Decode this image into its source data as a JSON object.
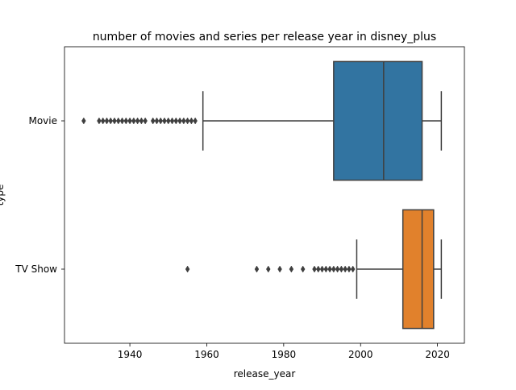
{
  "chart_data": {
    "type": "box",
    "orientation": "horizontal",
    "title": "number of movies and series per release year in disney_plus",
    "xlabel": "release_year",
    "ylabel": "type",
    "xlim": [
      1923,
      2027
    ],
    "xticks": [
      1940,
      1960,
      1980,
      2000,
      2020
    ],
    "grid": false,
    "categories": [
      "Movie",
      "TV Show"
    ],
    "boxes": [
      {
        "category": "Movie",
        "color": "#3274a1",
        "whisker_low": 1959,
        "q1": 1993,
        "median": 2006,
        "q3": 2016,
        "whisker_high": 2021,
        "outliers": [
          1928,
          1932,
          1933,
          1934,
          1935,
          1936,
          1937,
          1938,
          1939,
          1940,
          1941,
          1942,
          1943,
          1944,
          1946,
          1947,
          1948,
          1949,
          1950,
          1951,
          1952,
          1953,
          1954,
          1955,
          1956,
          1957
        ]
      },
      {
        "category": "TV Show",
        "color": "#e1812c",
        "whisker_low": 1999,
        "q1": 2011,
        "median": 2016,
        "q3": 2019,
        "whisker_high": 2021,
        "outliers": [
          1955,
          1973,
          1976,
          1979,
          1982,
          1985,
          1988,
          1989,
          1990,
          1991,
          1992,
          1993,
          1994,
          1995,
          1996,
          1997,
          1998
        ]
      }
    ]
  }
}
